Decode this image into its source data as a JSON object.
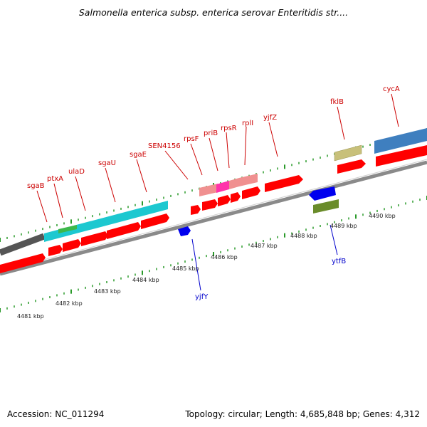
{
  "title": "Salmonella enterica subsp. enterica serovar Enteritidis str....",
  "footer": {
    "accession": "Accession: NC_011294",
    "summary": "Topology: circular; Length: 4,685,848 bp; Genes: 4,312"
  },
  "colors": {
    "gene_label": "#cc0000",
    "blue_label": "#0000cc",
    "red_gene": "#ff0000",
    "blue_gene": "#0000ee",
    "cyan_region": "#1cc8d0",
    "pink_region": "#f08a8a",
    "magenta_region": "#ff33aa",
    "olive_region": "#c8c07a",
    "green_region": "#6a8c2a",
    "steel_region": "#3f7fbf",
    "backbone": "#8a8a8a",
    "tick": "#2a9a2a"
  },
  "kbp_ticks": [
    "4481 kbp",
    "4482 kbp",
    "4483 kbp",
    "4484 kbp",
    "4485 kbp",
    "4486 kbp",
    "4487 kbp",
    "4488 kbp",
    "4489 kbp",
    "4490 kbp"
  ],
  "top_labels": [
    "sgaB",
    "ptxA",
    "ulaD",
    "sgaU",
    "sgaE",
    "SEN4156",
    "rpsF",
    "priB",
    "rpsR",
    "rplI",
    "yjfZ",
    "fklB",
    "cycA"
  ],
  "bottom_labels": [
    "yjfY",
    "ytfB"
  ]
}
